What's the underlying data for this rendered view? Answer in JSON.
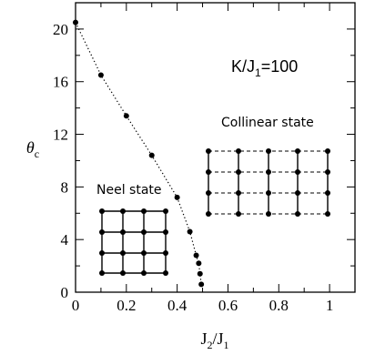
{
  "chart_data": {
    "type": "scatter",
    "x_label": {
      "main": "J",
      "sub1": "2",
      "slash": "/J",
      "sub2": "1"
    },
    "y_label": {
      "main": "θ",
      "sub": "c"
    },
    "x_ticks": [
      "0",
      "0.2",
      "0.4",
      "0.6",
      "0.8",
      "1"
    ],
    "y_ticks": [
      "0",
      "4",
      "8",
      "12",
      "16",
      "20"
    ],
    "xlim": [
      0,
      1.1
    ],
    "ylim": [
      0,
      22
    ],
    "annotation_param": {
      "main": "K/J",
      "sub": "1",
      "rest": "=100"
    },
    "annotation_neel": "Neel state",
    "annotation_collinear": "Collinear state",
    "series": [
      {
        "x": [
          0,
          0.1,
          0.2,
          0.3,
          0.4,
          0.45,
          0.475,
          0.485,
          0.49,
          0.495
        ],
        "y": [
          20.5,
          16.5,
          13.4,
          10.4,
          7.2,
          4.6,
          2.8,
          2.2,
          1.4,
          0.6
        ]
      }
    ]
  }
}
